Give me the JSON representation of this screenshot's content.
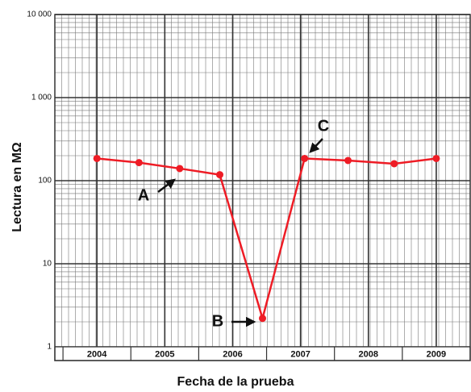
{
  "chart_data": {
    "type": "line",
    "x_label": "Fecha de la prueba",
    "y_label": "Lectura en MΩ",
    "x": [
      2004.5,
      2005.12,
      2005.72,
      2006.31,
      2006.94,
      2007.56,
      2008.2,
      2008.88,
      2009.5
    ],
    "series": [
      {
        "color": "#ee1c25",
        "values": [
          185,
          165,
          140,
          118,
          2.2,
          185,
          175,
          160,
          185
        ]
      }
    ],
    "xlim": [
      2003.88,
      2010.0
    ],
    "xticks": [
      2004,
      2005,
      2006,
      2007,
      2008,
      2009
    ],
    "ylim": [
      1,
      10000
    ],
    "yticks": [
      {
        "value": 10000,
        "label": "10 000"
      },
      {
        "value": 1000,
        "label": "1 000"
      },
      100,
      10,
      1
    ],
    "log_y": true,
    "grid": true,
    "annotations": [
      "A",
      "B",
      "C"
    ]
  }
}
